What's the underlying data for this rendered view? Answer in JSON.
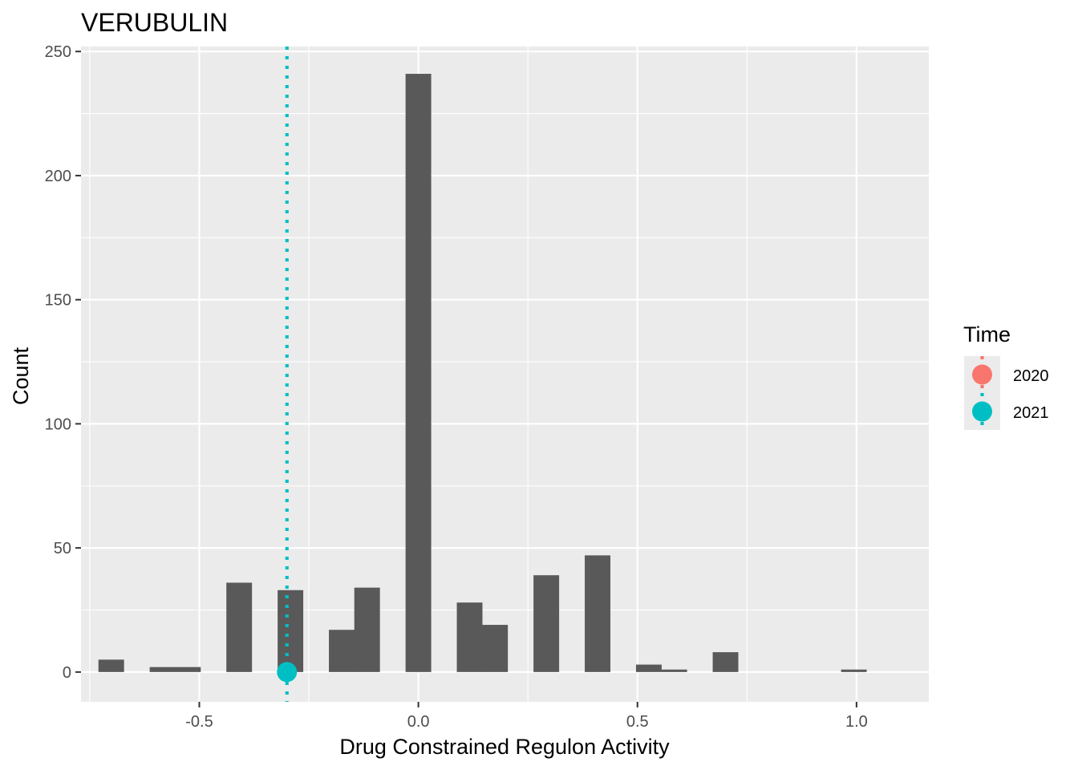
{
  "chart_data": {
    "type": "bar",
    "title": "VERUBULIN",
    "xlabel": "Drug Constrained Regulon Activity",
    "ylabel": "Count",
    "xlim": [
      -0.77,
      1.165
    ],
    "ylim": [
      -12,
      252
    ],
    "x_ticks": [
      -0.5,
      0.0,
      0.5,
      1.0
    ],
    "x_tick_labels": [
      "-0.5",
      "0.0",
      "0.5",
      "1.0"
    ],
    "y_ticks": [
      0,
      50,
      100,
      150,
      200,
      250
    ],
    "y_tick_labels": [
      "0",
      "50",
      "100",
      "150",
      "200",
      "250"
    ],
    "bin_width": 0.0585,
    "bars": [
      {
        "x": -0.701,
        "count": 5
      },
      {
        "x": -0.584,
        "count": 2
      },
      {
        "x": -0.526,
        "count": 2
      },
      {
        "x": -0.409,
        "count": 36
      },
      {
        "x": -0.292,
        "count": 33
      },
      {
        "x": -0.175,
        "count": 17
      },
      {
        "x": -0.117,
        "count": 34
      },
      {
        "x": 0.0,
        "count": 241
      },
      {
        "x": 0.117,
        "count": 28
      },
      {
        "x": 0.175,
        "count": 19
      },
      {
        "x": 0.292,
        "count": 39
      },
      {
        "x": 0.409,
        "count": 47
      },
      {
        "x": 0.526,
        "count": 3
      },
      {
        "x": 0.584,
        "count": 1
      },
      {
        "x": 0.701,
        "count": 8
      },
      {
        "x": 0.994,
        "count": 1
      }
    ],
    "markers": [
      {
        "series": "2021",
        "x": -0.3,
        "y": 0,
        "vline": true
      }
    ],
    "legend": {
      "title": "Time",
      "placement": "right",
      "entries": [
        {
          "label": "2020",
          "color": "#F8766D"
        },
        {
          "label": "2021",
          "color": "#00BFC4"
        }
      ]
    },
    "colors": {
      "panel": "#EBEBEB",
      "grid": "#FFFFFF",
      "bar": "#595959"
    },
    "grid": true
  }
}
